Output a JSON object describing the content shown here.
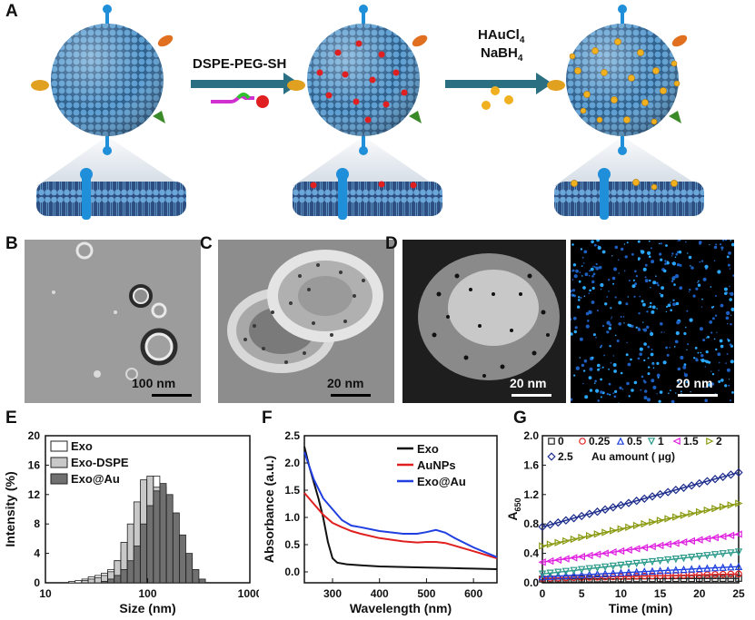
{
  "figure": {
    "panels": {
      "A": "A",
      "B": "B",
      "C": "C",
      "D": "D",
      "E": "E",
      "F": "F",
      "G": "G"
    },
    "schematic": {
      "step1_reagent": "DSPE-PEG-SH",
      "step2_reagent_line1": "HAuCl",
      "step2_reagent_line1_sub": "4",
      "step2_reagent_line2": "NaBH",
      "step2_reagent_line2_sub": "4"
    },
    "micrographs": {
      "B_scale": "100 nm",
      "C_scale": "20 nm",
      "D_left_scale": "20 nm",
      "D_right_scale": "20 nm"
    },
    "colors": {
      "exosome_blue": "#4f8fc4",
      "dspe_red": "#e02020",
      "gold": "#f0b020",
      "arrow_teal": "#2a6f82",
      "eds_cyan": "#2aa8ff"
    }
  },
  "chart_data": [
    {
      "id": "E",
      "type": "bar",
      "xlabel": "Size (nm)",
      "ylabel": "Intensity (%)",
      "xscale": "log",
      "xlim": [
        10,
        1000
      ],
      "ylim": [
        0,
        20
      ],
      "xticks": [
        "10",
        "100",
        "1000"
      ],
      "yticks": [
        "0",
        "4",
        "8",
        "12",
        "16",
        "20"
      ],
      "legend_position": "top-left",
      "series": [
        {
          "name": "Exo",
          "color": "#ffffff",
          "x": [
            18.2,
            21,
            24.4,
            28.2,
            32.7,
            37.8,
            43.8,
            50.7,
            58.8,
            68.1,
            78.8,
            91.3,
            105.7,
            122.4,
            141.8,
            164.2,
            190.1,
            220.2,
            255,
            295.3
          ],
          "values": [
            0.2,
            0.3,
            0.5,
            0.8,
            1.0,
            1.3,
            1.8,
            3.0,
            4.2,
            5.5,
            8.0,
            11.0,
            13.5,
            14.5,
            13.0,
            9.5,
            6.0,
            3.2,
            1.2,
            0.3
          ]
        },
        {
          "name": "Exo-DSPE",
          "color": "#c8c8c8",
          "x": [
            24.4,
            28.2,
            32.7,
            37.8,
            43.8,
            50.7,
            58.8,
            68.1,
            78.8,
            91.3,
            105.7,
            122.4,
            141.8,
            164.2,
            190.1,
            220.2,
            255
          ],
          "values": [
            0.3,
            0.5,
            0.7,
            1.0,
            1.5,
            3.0,
            5.5,
            8.0,
            11.0,
            14.0,
            14.5,
            13.0,
            9.0,
            5.5,
            2.5,
            0.8,
            0.2
          ]
        },
        {
          "name": "Exo@Au",
          "color": "#707070",
          "x": [
            37.8,
            43.8,
            50.7,
            58.8,
            68.1,
            78.8,
            91.3,
            105.7,
            122.4,
            141.8,
            164.2,
            190.1,
            220.2,
            255,
            295.3,
            342
          ],
          "values": [
            0.2,
            0.5,
            1.0,
            1.8,
            3.0,
            5.0,
            8.0,
            10.5,
            12.5,
            13.5,
            12.0,
            9.5,
            6.5,
            4.0,
            1.8,
            0.5
          ]
        }
      ]
    },
    {
      "id": "F",
      "type": "line",
      "xlabel": "Wavelength (nm)",
      "ylabel": "Absorbance (a.u.)",
      "xlim": [
        240,
        650
      ],
      "ylim": [
        -0.2,
        2.5
      ],
      "xticks": [
        "300",
        "400",
        "500",
        "600"
      ],
      "yticks": [
        "0.0",
        "0.5",
        "1.0",
        "1.5",
        "2.0",
        "2.5"
      ],
      "legend_position": "top-right",
      "series": [
        {
          "name": "Exo",
          "color": "#111111",
          "x": [
            240,
            250,
            260,
            270,
            280,
            290,
            300,
            310,
            330,
            360,
            400,
            450,
            500,
            550,
            600,
            650
          ],
          "values": [
            2.3,
            1.95,
            1.65,
            1.35,
            1.0,
            0.55,
            0.25,
            0.17,
            0.14,
            0.12,
            0.1,
            0.09,
            0.08,
            0.07,
            0.06,
            0.05
          ]
        },
        {
          "name": "AuNPs",
          "color": "#e02020",
          "x": [
            240,
            260,
            280,
            300,
            320,
            340,
            360,
            400,
            450,
            480,
            500,
            520,
            540,
            560,
            600,
            650
          ],
          "values": [
            1.45,
            1.25,
            1.05,
            0.9,
            0.82,
            0.75,
            0.7,
            0.62,
            0.56,
            0.54,
            0.55,
            0.55,
            0.53,
            0.48,
            0.38,
            0.25
          ]
        },
        {
          "name": "Exo@Au",
          "color": "#1f3fe0",
          "x": [
            240,
            260,
            280,
            300,
            320,
            340,
            360,
            400,
            450,
            480,
            500,
            520,
            540,
            560,
            600,
            650
          ],
          "values": [
            2.2,
            1.7,
            1.35,
            1.15,
            0.95,
            0.85,
            0.82,
            0.75,
            0.7,
            0.7,
            0.73,
            0.77,
            0.72,
            0.62,
            0.45,
            0.27
          ]
        }
      ]
    },
    {
      "id": "G",
      "type": "scatter",
      "xlabel": "Time (min)",
      "ylabel": "A",
      "ylabel_sub": "650",
      "xlim": [
        0,
        25
      ],
      "ylim": [
        0,
        2.0
      ],
      "xticks": [
        "0",
        "5",
        "10",
        "15",
        "20",
        "25"
      ],
      "yticks": [
        "0.0",
        "0.4",
        "0.8",
        "1.2",
        "1.6",
        "2.0"
      ],
      "legend_position": "top",
      "legend_note": "Au amount ( μg)",
      "series": [
        {
          "name": "0",
          "color": "#222222",
          "marker": "square",
          "start": 0.05,
          "end": 0.06
        },
        {
          "name": "0.25",
          "color": "#e02020",
          "marker": "circle",
          "start": 0.06,
          "end": 0.12
        },
        {
          "name": "0.5",
          "color": "#1f3fe0",
          "marker": "triangle-up",
          "start": 0.08,
          "end": 0.22
        },
        {
          "name": "1",
          "color": "#2a9a8a",
          "marker": "triangle-down",
          "start": 0.12,
          "end": 0.42
        },
        {
          "name": "1.5",
          "color": "#e020e0",
          "marker": "triangle-left",
          "start": 0.28,
          "end": 0.66
        },
        {
          "name": "2",
          "color": "#8a9a10",
          "marker": "triangle-right",
          "start": 0.5,
          "end": 1.08
        },
        {
          "name": "2.5",
          "color": "#1a2a8a",
          "marker": "diamond",
          "start": 0.76,
          "end": 1.5
        }
      ],
      "time_points": [
        0,
        1,
        2,
        3,
        4,
        5,
        6,
        7,
        8,
        9,
        10,
        11,
        12,
        13,
        14,
        15,
        16,
        17,
        18,
        19,
        20,
        21,
        22,
        23,
        24,
        25
      ]
    }
  ]
}
